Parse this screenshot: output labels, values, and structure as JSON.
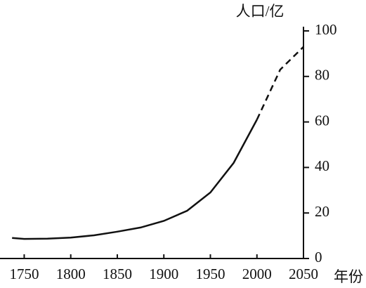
{
  "chart_data": {
    "type": "line",
    "y_label": "人口/亿",
    "x_label": "年份",
    "x": [
      1737,
      1750,
      1775,
      1800,
      1825,
      1850,
      1875,
      1900,
      1925,
      1950,
      1975,
      2000,
      2025,
      2050
    ],
    "series": [
      {
        "color": "#111111",
        "style": "solid",
        "values": [
          9,
          8.6,
          8.7,
          9.2,
          10.2,
          11.8,
          13.6,
          16.5,
          21,
          29,
          42,
          61,
          null,
          null
        ]
      },
      {
        "color": "#111111",
        "style": "dashed",
        "values": [
          null,
          null,
          null,
          null,
          null,
          null,
          null,
          null,
          null,
          null,
          null,
          61,
          83,
          93
        ]
      }
    ],
    "xlim": [
      1724,
      2050
    ],
    "xticks": [
      1750,
      1800,
      1850,
      1900,
      1950,
      2000,
      2050
    ],
    "ylim": [
      0,
      100
    ],
    "yticks": [
      0,
      20,
      40,
      60,
      80,
      100
    ],
    "y_axis_side": "right",
    "grid": false
  }
}
